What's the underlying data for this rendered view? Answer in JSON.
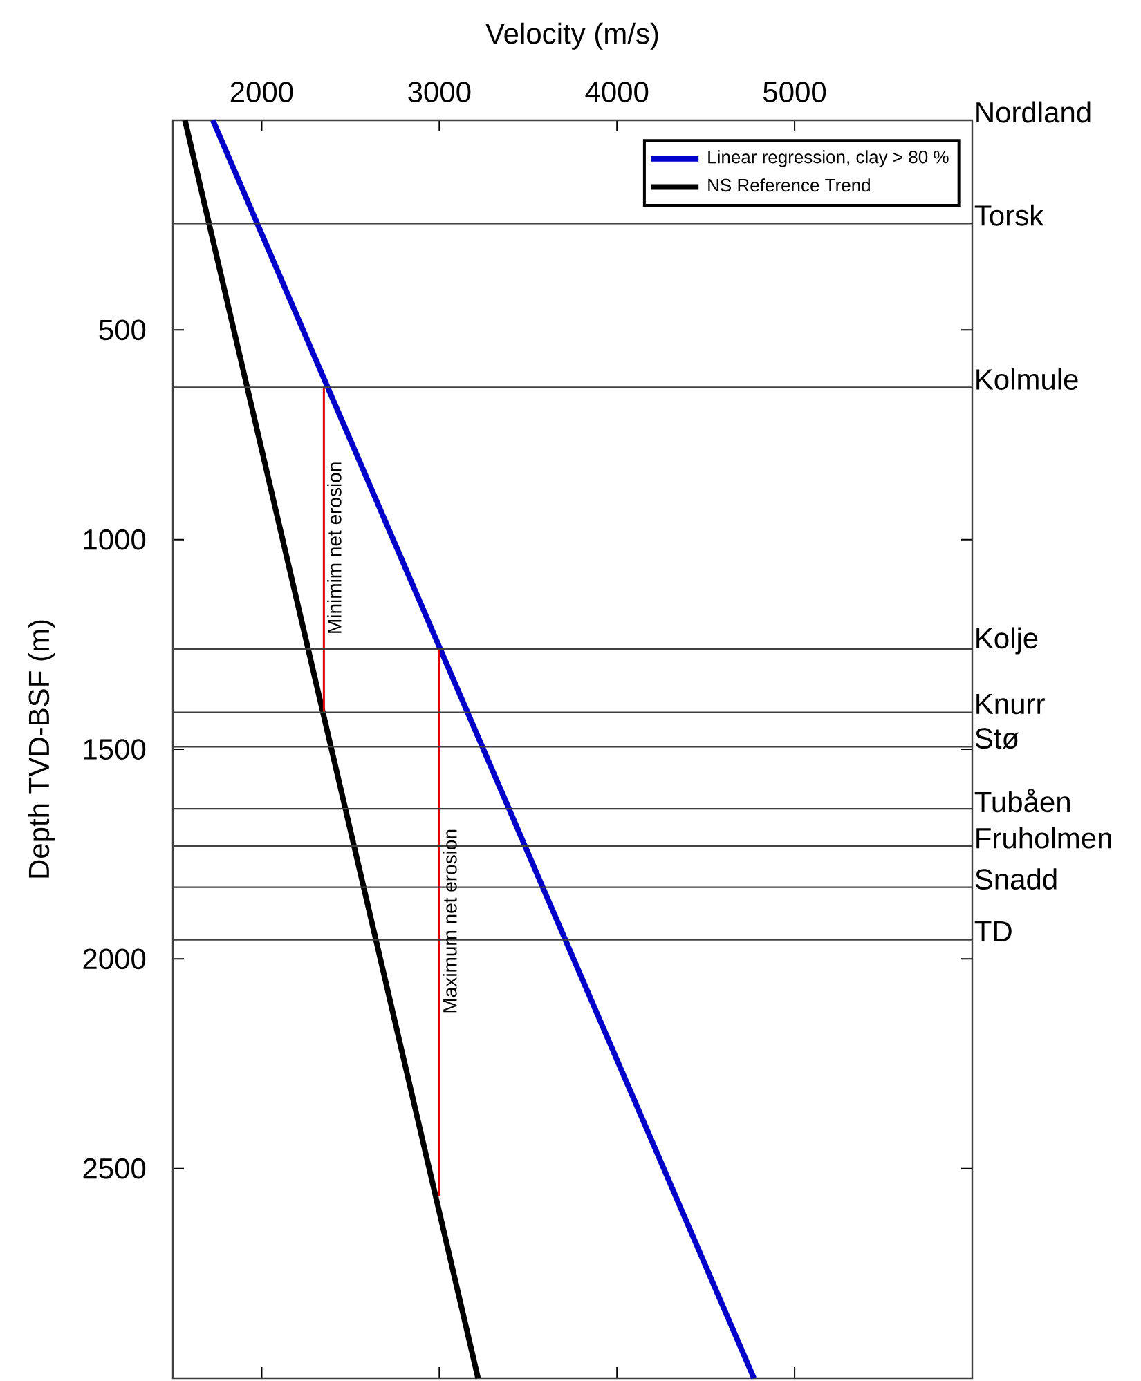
{
  "chart_data": {
    "type": "line",
    "xlabel": "Velocity (m/s)",
    "ylabel": "Depth TVD-BSF (m)",
    "xlim": [
      1500,
      6000
    ],
    "ylim": [
      3000,
      0
    ],
    "xticks": [
      2000,
      3000,
      4000,
      5000
    ],
    "yticks": [
      500,
      1000,
      1500,
      2000,
      2500
    ],
    "legend": "top right",
    "grid": false,
    "marker": "none",
    "line_style": "solid",
    "series": [
      {
        "name": "Linear regression, clay > 80 %",
        "color": "#0000c8",
        "x": [
          1725,
          4771
        ],
        "values": [
          0,
          3000
        ]
      },
      {
        "name": "NS Reference Trend",
        "color": "#000000",
        "x": [
          1568,
          3218
        ],
        "values": [
          0,
          3000
        ]
      },
      {
        "color": "#e00000",
        "x": [
          2350,
          2350
        ],
        "values": [
          637,
          1412
        ]
      },
      {
        "color": "#e00000",
        "x": [
          3000,
          3000
        ],
        "values": [
          1261,
          2565
        ]
      }
    ],
    "ref_lines": [
      {
        "axis": "y",
        "value": 246,
        "label": "Torsk",
        "color": "#404040"
      },
      {
        "axis": "y",
        "value": 637,
        "label": "Kolmule",
        "color": "#404040"
      },
      {
        "axis": "y",
        "value": 1261,
        "label": "Kolje",
        "color": "#404040"
      },
      {
        "axis": "y",
        "value": 1412,
        "label": "Knurr",
        "color": "#404040"
      },
      {
        "axis": "y",
        "value": 1494,
        "label": "Stø",
        "color": "#404040"
      },
      {
        "axis": "y",
        "value": 1642,
        "label": "Tubåen",
        "color": "#404040"
      },
      {
        "axis": "y",
        "value": 1731,
        "label": "Fruholmen",
        "color": "#404040"
      },
      {
        "axis": "y",
        "value": 1829,
        "label": "Snadd",
        "color": "#404040"
      },
      {
        "axis": "y",
        "value": 1954,
        "label": "TD",
        "color": "#404040"
      }
    ],
    "annotations": [
      "Nordland",
      {
        "text": "Minimim net erosion",
        "x": 2350,
        "y": 1020
      },
      {
        "text": "Maximum net erosion",
        "x": 3000,
        "y": 1910
      }
    ]
  }
}
